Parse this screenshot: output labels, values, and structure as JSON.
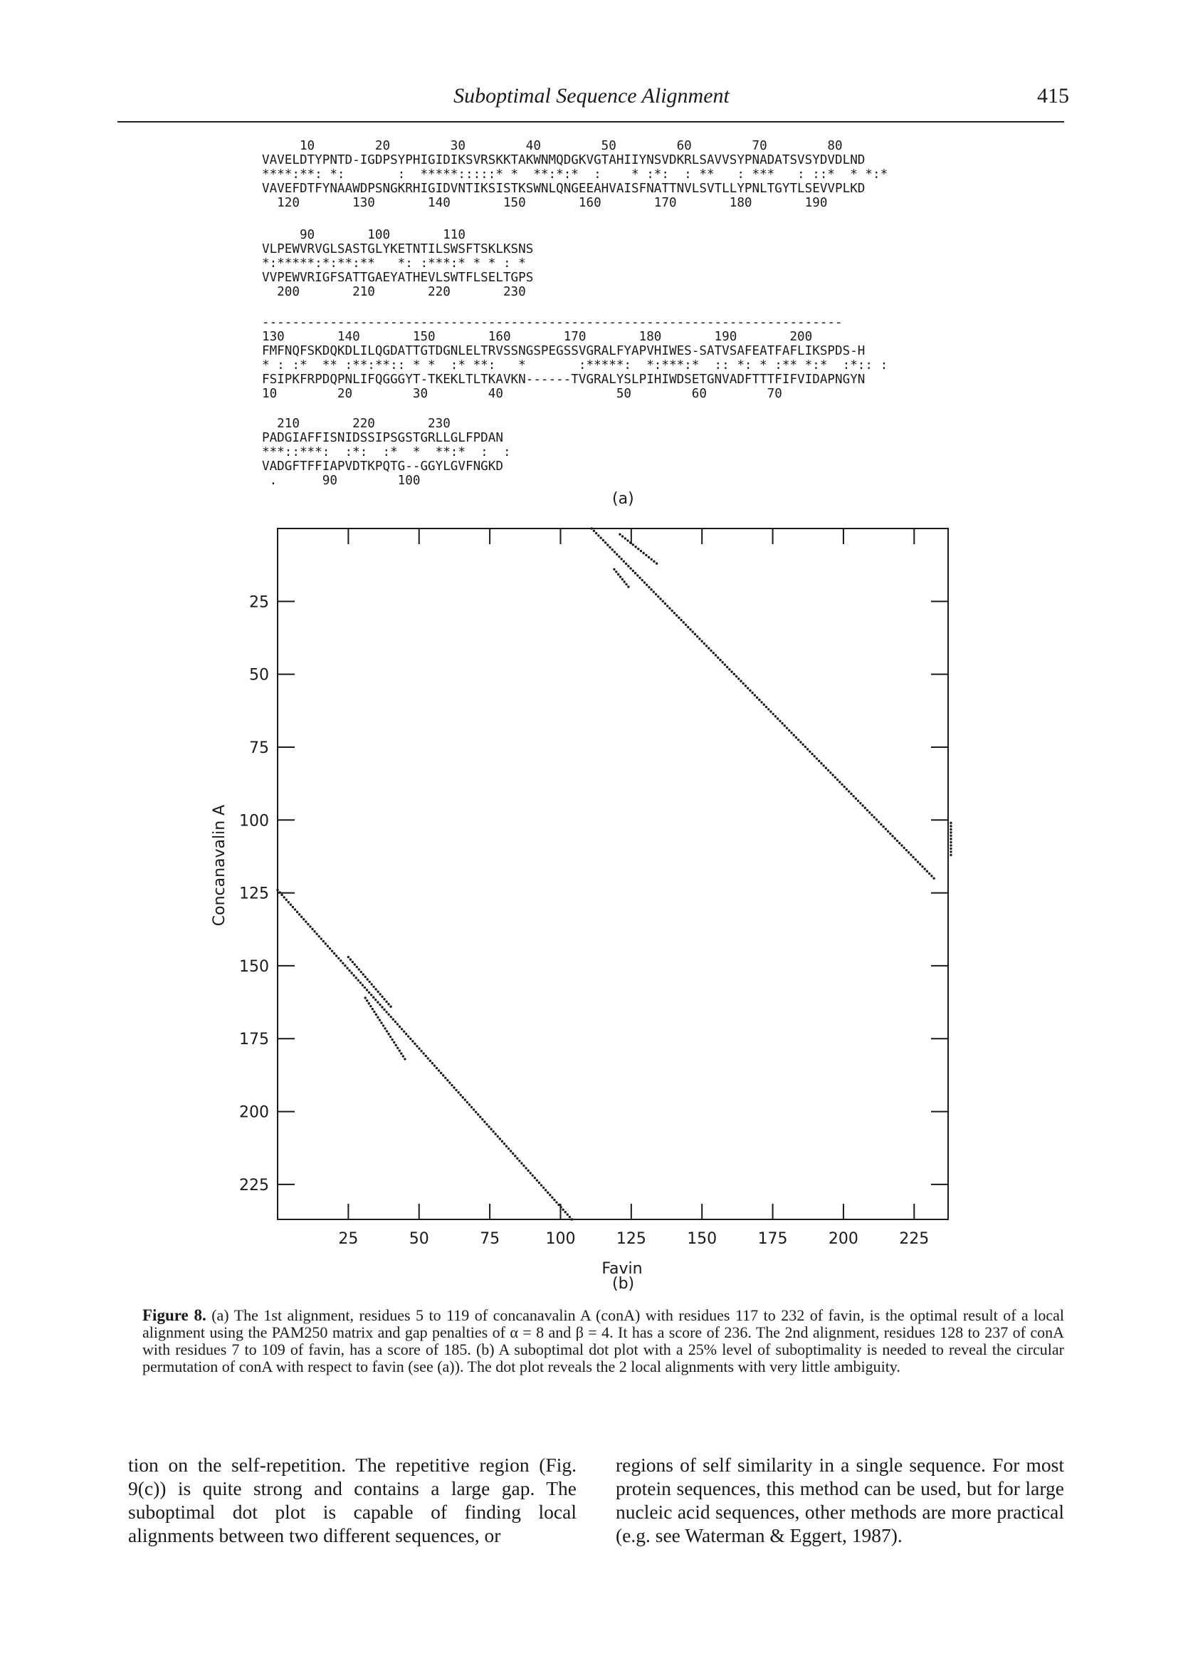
{
  "header": {
    "running_title": "Suboptimal Sequence Alignment",
    "page_number": "415"
  },
  "alignment_a": {
    "block1": {
      "top_ruler": "     10        20        30        40        50        60        70        80",
      "seq_top": "VAVELDTYPNTD-IGDPSYPHIGIDIKSVRSKKTAKWNMQDGKVGTAHIIYNSVDKRLSAVVSYPNADATSVSYDVDLND",
      "match": "****:**: *:       :  *****:::::* *  **:*:*  :    * :*:  : **   : ***   : ::*  * *:*",
      "seq_bottom": "VAVEFDTFYNAAWDPSNGKRHIGIDVNTIKSISTKSWNLQNGEEAHVAISFNATTNVLSVTLLYPNLTGYTLSEVVPLKD",
      "bottom_ruler": "  120       130       140       150       160       170       180       190"
    },
    "block2": {
      "top_ruler": "     90       100       110",
      "seq_top": "VLPEWVRVGLSASTGLYKETNTILSWSFTSKLKSNS",
      "match": "*:*****:*:**:**   *: :***:* * * : *",
      "seq_bottom": "VVPEWVRIGFSATTGAEYATHEVLSWTFLSELTGPS",
      "bottom_ruler": "  200       210       220       230"
    },
    "separator": "-----------------------------------------------------------------------------",
    "block3": {
      "top_ruler": "130       140       150       160       170       180       190       200",
      "seq_top": "FMFNQFSKDQKDLILQGDATTGTDGNLELTRVSSNGSPEGSSVGRALFYAPVHIWES-SATVSAFEATFAFLIKSPDS-H",
      "match": "* : :*  ** :**:**:: * *  :* **:   *       :*****:  *:***:*  :: *: * :** *:*  :*:: :",
      "seq_bottom": "FSIPKFRPDQPNLIFQGGGYT-TKEKLTLTKAVKN------TVGRALYSLPIHIWDSETGNVADFTTTFIFVIDAPNGYN",
      "bottom_ruler": "10        20        30        40               50        60        70"
    },
    "block4": {
      "top_ruler": "  210       220       230",
      "seq_top": "PADGIAFFISNIDSSIPSGSTGRLLGLFPDAN",
      "match": "***::***:  :*:  :*  *  **:*  :  :",
      "seq_bottom": "VADGFTFFIAPVDTKPQTG--GGYLGVFNGKD",
      "bottom_ruler": " .      90        100"
    },
    "panel_label": "(a)"
  },
  "dot_plot": {
    "ylabel": "Concanavalin A",
    "xlabel": "Favin",
    "panel_label": "(b)",
    "y_ticks": [
      "25",
      "50",
      "75",
      "100",
      "125",
      "150",
      "175",
      "200",
      "225"
    ],
    "x_ticks": [
      "25",
      "50",
      "75",
      "100",
      "125",
      "150",
      "175",
      "200",
      "225"
    ]
  },
  "chart_data": {
    "type": "scatter",
    "title": "",
    "xlabel": "Favin",
    "ylabel": "Concanavalin A",
    "xlim": [
      0,
      237
    ],
    "ylim": [
      0,
      237
    ],
    "y_inverted": true,
    "x_ticks": [
      25,
      50,
      75,
      100,
      125,
      150,
      175,
      200,
      225
    ],
    "y_ticks": [
      25,
      50,
      75,
      100,
      125,
      150,
      175,
      200,
      225
    ],
    "series": [
      {
        "points": [
          [
            111,
            0
          ],
          [
            232,
            120
          ]
        ]
      },
      {
        "points": [
          [
            0,
            124
          ],
          [
            104,
            237
          ]
        ]
      },
      {
        "points": [
          [
            121,
            2
          ],
          [
            134,
            12
          ]
        ]
      },
      {
        "points": [
          [
            119,
            14
          ],
          [
            124,
            20
          ]
        ]
      },
      {
        "points": [
          [
            238,
            101
          ],
          [
            238,
            112
          ]
        ]
      },
      {
        "points": [
          [
            25,
            147
          ],
          [
            40,
            164
          ]
        ]
      },
      {
        "points": [
          [
            31,
            161
          ],
          [
            45,
            182
          ]
        ]
      }
    ]
  },
  "caption": {
    "label": "Figure 8.",
    "text": "(a) The 1st alignment, residues 5 to 119 of concanavalin A (conA) with residues 117 to 232 of favin, is the optimal result of a local alignment using the PAM250 matrix and gap penalties of α = 8 and β = 4. It has a score of 236. The 2nd alignment, residues 128 to 237 of conA with residues 7 to 109 of favin, has a score of 185. (b) A suboptimal dot plot with a 25% level of suboptimality is needed to reveal the circular permutation of conA with respect to favin (see (a)). The dot plot reveals the 2 local alignments with very little ambiguity."
  },
  "body_text": {
    "left": "tion on the self-repetition. The repetitive region (Fig. 9(c)) is quite strong and contains a large gap. The suboptimal dot plot is capable of finding local alignments between two different sequences, or",
    "right": "regions of self similarity in a single sequence. For most protein sequences, this method can be used, but for large nucleic acid sequences, other methods are more practical (e.g. see Waterman & Eggert, 1987)."
  }
}
